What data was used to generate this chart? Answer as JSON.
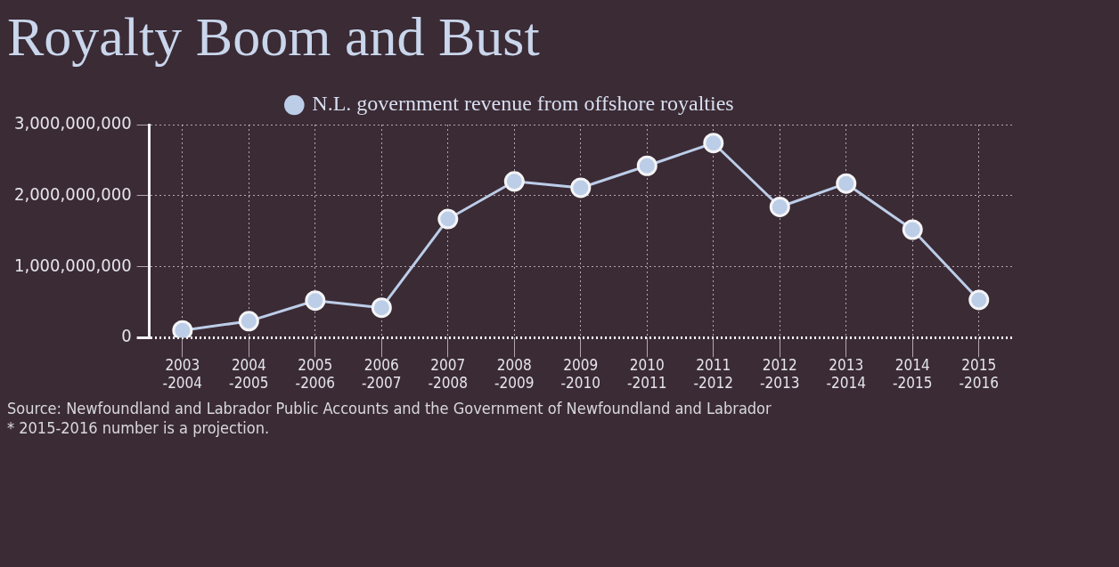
{
  "chart_data": {
    "type": "line",
    "title": "Royalty Boom and Bust",
    "categories": [
      "2003\n-2004",
      "2004\n-2005",
      "2005\n-2006",
      "2006\n-2007",
      "2007\n-2008",
      "2008\n-2009",
      "2009\n-2010",
      "2010\n-2011",
      "2011\n-2012",
      "2012\n-2013",
      "2013\n-2014",
      "2014\n-2015",
      "2015\n-2016"
    ],
    "series": [
      {
        "name": "N.L. government revenue from offshore royalties",
        "color": "#bccde8",
        "values": [
          100000000,
          230000000,
          520000000,
          420000000,
          1670000000,
          2200000000,
          2110000000,
          2420000000,
          2740000000,
          1840000000,
          2170000000,
          1520000000,
          530000000
        ]
      }
    ],
    "ylim": [
      0,
      3000000000
    ],
    "yticks": [
      {
        "value": 0,
        "label": "0"
      },
      {
        "value": 1000000000,
        "label": "1,000,000,000"
      },
      {
        "value": 2000000000,
        "label": "2,000,000,000"
      },
      {
        "value": 3000000000,
        "label": "3,000,000,000"
      }
    ],
    "grid": true,
    "legend": "top",
    "marker": "circle",
    "line_style": "solid",
    "annotations": [
      "Source: Newfoundland and Labrador Public Accounts and the Government of Newfoundland and Labrador",
      "* 2015-2016 number is a projection."
    ]
  }
}
